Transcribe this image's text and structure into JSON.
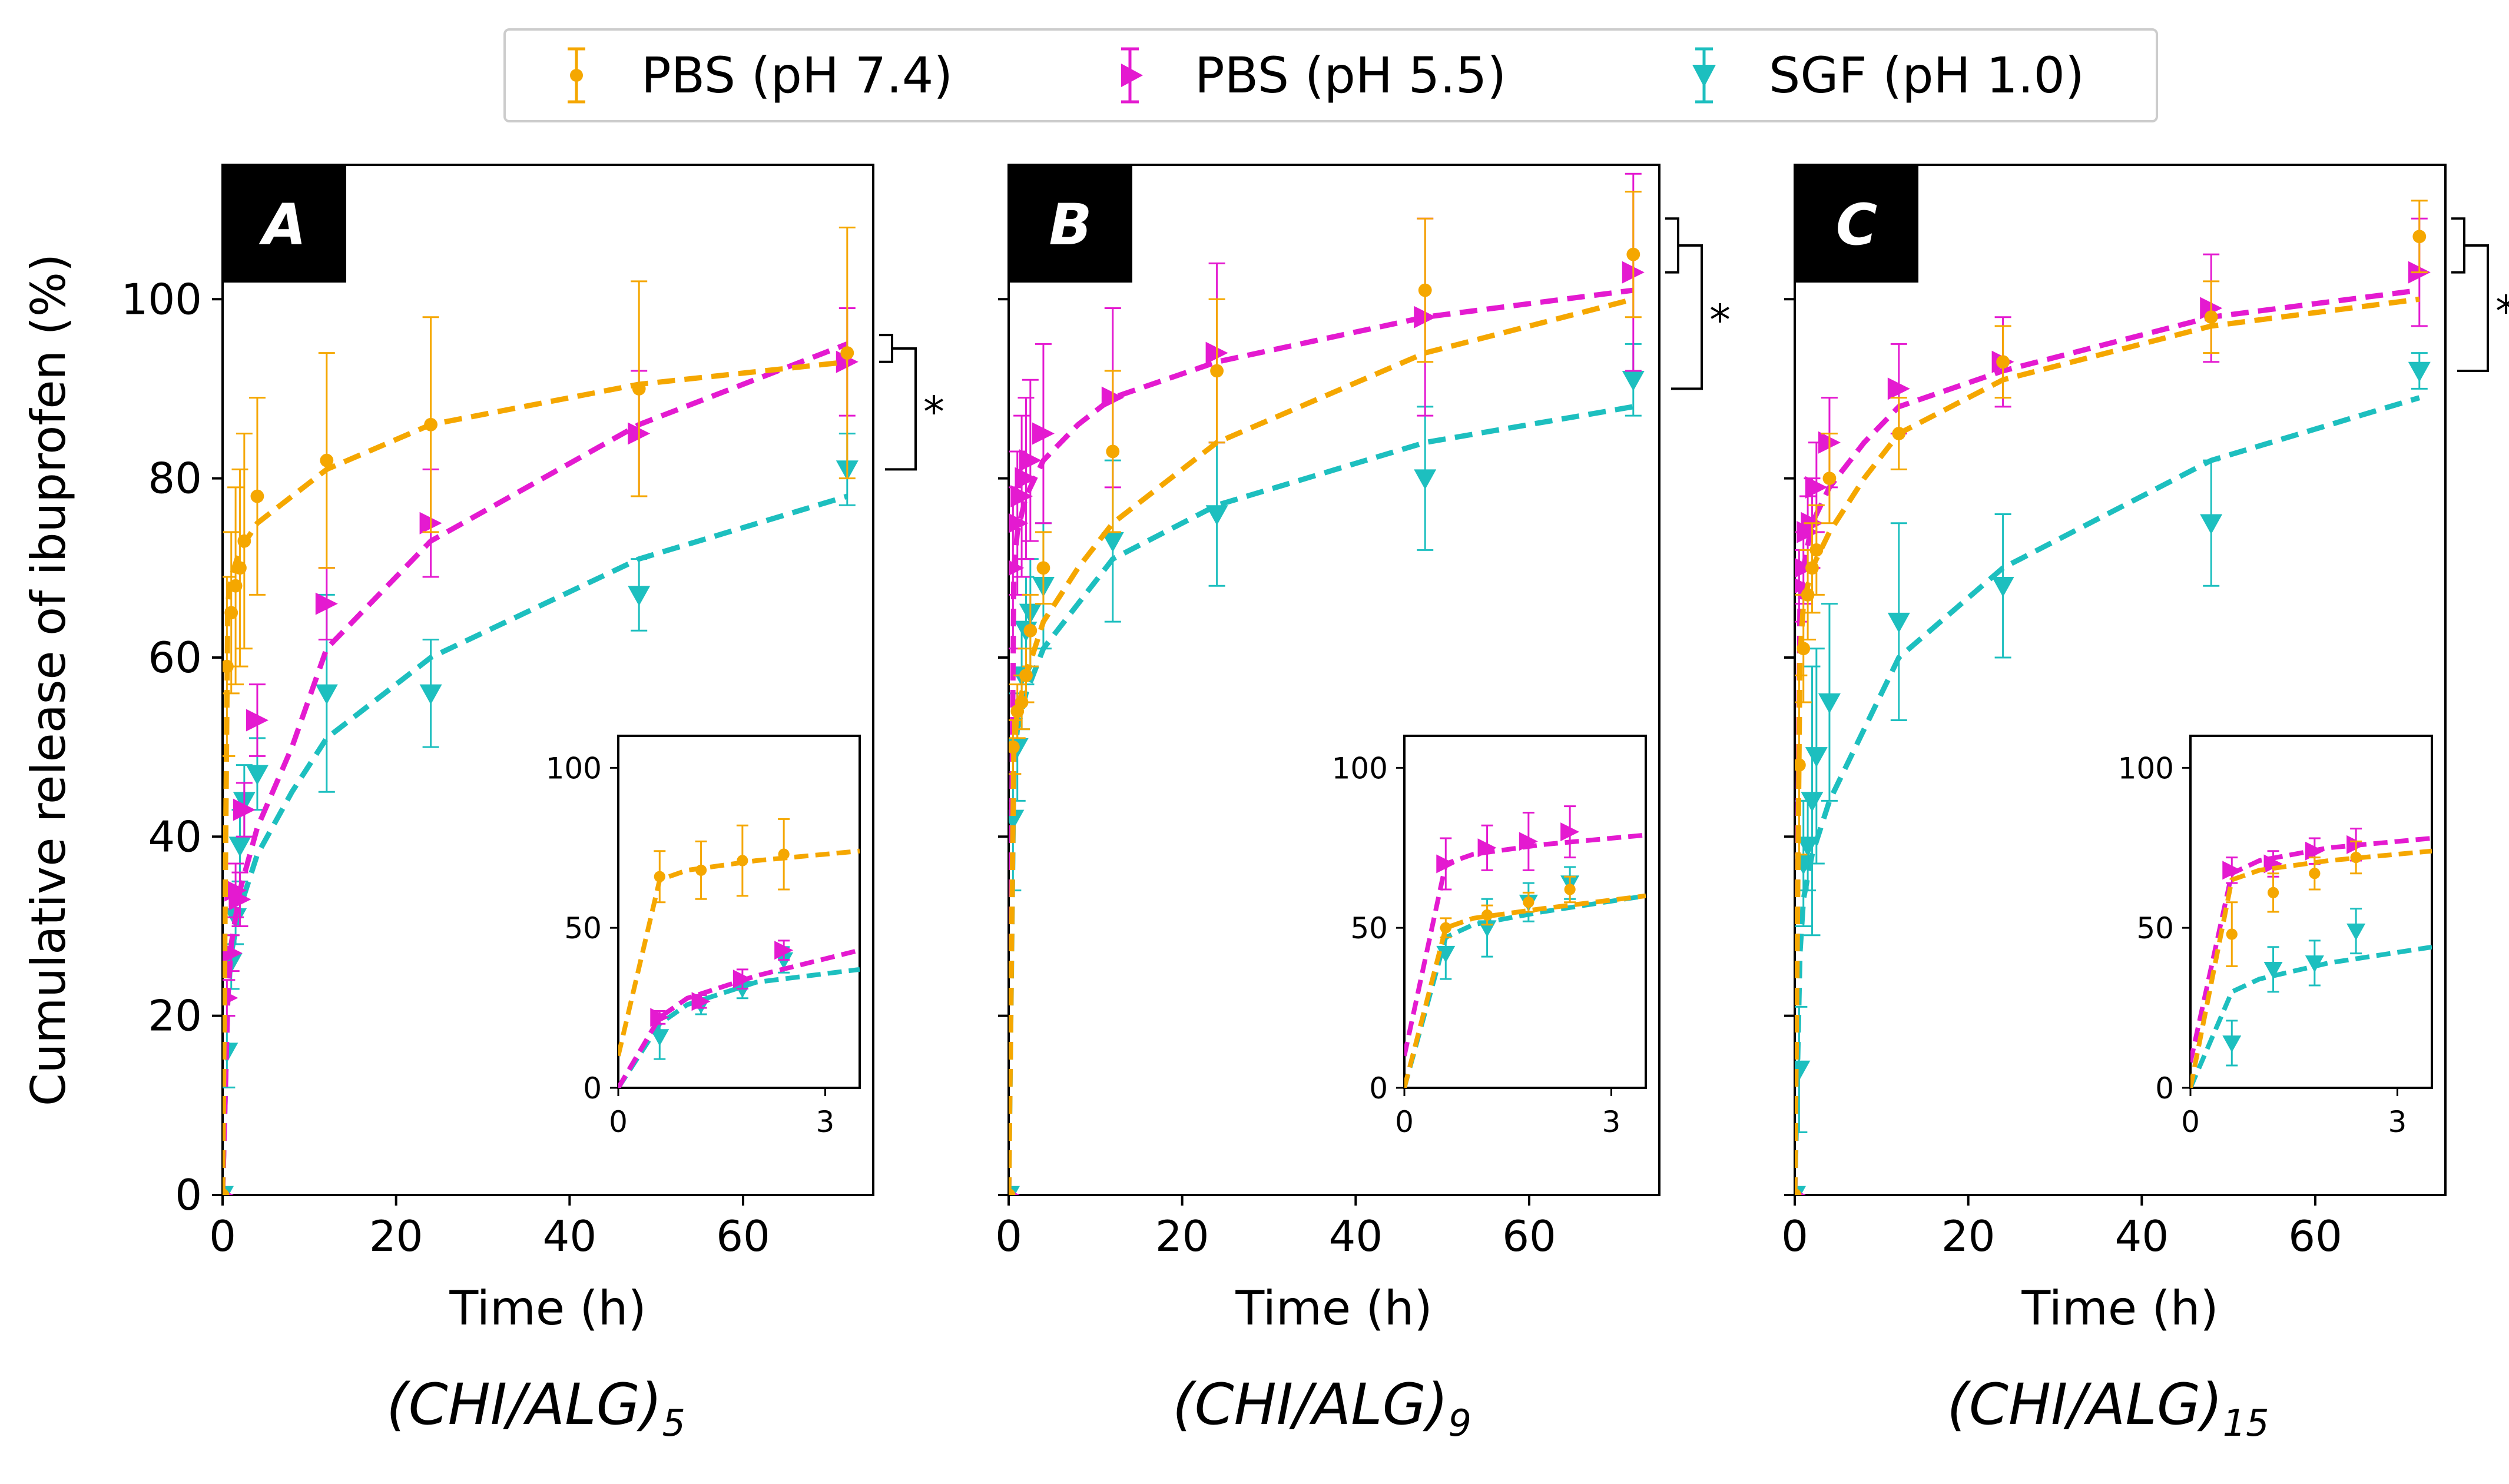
{
  "legend": {
    "items": [
      {
        "label": "PBS (pH 7.4)",
        "color": "#f5a700",
        "marker": "circle"
      },
      {
        "label": "PBS (pH 5.5)",
        "color": "#e41ad0",
        "marker": "triangle-right"
      },
      {
        "label": "SGF (pH 1.0)",
        "color": "#1dbfbf",
        "marker": "triangle-down"
      }
    ]
  },
  "axes_common": {
    "xlabel": "Time (h)",
    "ylabel": "Cumulative release of ibuprofen (%)",
    "xlim": [
      0,
      75
    ],
    "ylim": [
      0,
      115
    ],
    "xticks": [
      0,
      20,
      40,
      60
    ],
    "yticks": [
      0,
      20,
      40,
      60,
      80,
      100
    ],
    "inset_xlim": [
      0,
      3.5
    ],
    "inset_ylim": [
      0,
      110
    ],
    "inset_xticks": [
      0,
      3
    ],
    "inset_yticks": [
      0,
      50,
      100
    ]
  },
  "significance_label": "*",
  "chart_data": [
    {
      "type": "line",
      "panel_label": "A",
      "caption_main": "(CHI/ALG)",
      "caption_sub": "5",
      "x": [
        0,
        0.5,
        1,
        1.5,
        2,
        2.5,
        4,
        12,
        24,
        48,
        72
      ],
      "series": [
        {
          "name": "PBS (pH 7.4)",
          "values": [
            0,
            59,
            65,
            68,
            70,
            73,
            78,
            82,
            86,
            90,
            94
          ],
          "errors": [
            0,
            10,
            9,
            11,
            11,
            12,
            11,
            12,
            12,
            12,
            14
          ],
          "fit_x": [
            0,
            0.6,
            1,
            2,
            4,
            8,
            12,
            24,
            48,
            72
          ],
          "fit_y": [
            0,
            66,
            69,
            72,
            75,
            78,
            81,
            86,
            90.5,
            93
          ]
        },
        {
          "name": "PBS (pH 5.5)",
          "values": [
            0,
            22,
            27,
            34,
            33,
            43,
            53,
            66,
            75,
            85,
            93
          ],
          "errors": [
            0,
            2,
            2,
            3,
            3,
            3,
            4,
            4,
            6,
            7,
            6
          ],
          "fit_x": [
            0,
            0.6,
            1,
            2,
            4,
            8,
            12,
            24,
            48,
            72
          ],
          "fit_y": [
            0,
            22,
            28,
            34,
            41,
            50,
            61,
            73,
            86,
            95
          ]
        },
        {
          "name": "SGF (pH 1.0)",
          "values": [
            0,
            16,
            26,
            31,
            39,
            44,
            47,
            56,
            56,
            67,
            81
          ],
          "errors": [
            0,
            4,
            3,
            3,
            4,
            4,
            4,
            11,
            6,
            4,
            4
          ],
          "fit_x": [
            0,
            0.6,
            1,
            2,
            4,
            8,
            12,
            24,
            48,
            72
          ],
          "fit_y": [
            0,
            22,
            27,
            32,
            38,
            45,
            51,
            60,
            71,
            78
          ]
        }
      ],
      "inset": {
        "x": [
          0.6,
          1.2,
          1.8,
          2.4
        ],
        "series": [
          {
            "name": "PBS (pH 7.4)",
            "values": [
              66,
              68,
              71,
              73
            ],
            "errors": [
              8,
              9,
              11,
              11
            ],
            "fit_x": [
              0,
              0.6,
              1,
              2,
              3.5
            ],
            "fit_y": [
              10,
              65,
              68,
              71,
              74
            ]
          },
          {
            "name": "PBS (pH 5.5)",
            "values": [
              22,
              27,
              34,
              43
            ],
            "errors": [
              2,
              2,
              3,
              3
            ],
            "fit_x": [
              0,
              0.6,
              1,
              2,
              3.5
            ],
            "fit_y": [
              0,
              22,
              28,
              35,
              43
            ]
          },
          {
            "name": "SGF (pH 1.0)",
            "values": [
              16,
              26,
              31,
              40
            ],
            "errors": [
              7,
              3,
              3,
              4
            ],
            "fit_x": [
              0,
              0.6,
              1,
              2,
              3.5
            ],
            "fit_y": [
              0,
              20,
              26,
              33,
              37
            ]
          }
        ]
      },
      "significance": {
        "upper": [
          93,
          96
        ],
        "lower": 81,
        "anchor": 93
      }
    },
    {
      "type": "line",
      "panel_label": "B",
      "caption_main": "(CHI/ALG)",
      "caption_sub": "9",
      "x": [
        0,
        0.5,
        1,
        1.5,
        2,
        2.5,
        4,
        12,
        24,
        48,
        72
      ],
      "series": [
        {
          "name": "PBS (pH 7.4)",
          "values": [
            0,
            50,
            54,
            55,
            58,
            63,
            70,
            83,
            92,
            101,
            105
          ],
          "errors": [
            0,
            3,
            3,
            3,
            3,
            4,
            4,
            9,
            8,
            8,
            7
          ],
          "fit_x": [
            0,
            0.6,
            1,
            2,
            4,
            8,
            12,
            24,
            48,
            72
          ],
          "fit_y": [
            0,
            50,
            54,
            58,
            64,
            70,
            75,
            84,
            94,
            100
          ]
        },
        {
          "name": "PBS (pH 5.5)",
          "values": [
            0,
            70,
            75,
            78,
            80,
            82,
            85,
            89,
            94,
            98,
            103
          ],
          "errors": [
            0,
            9,
            8,
            9,
            9,
            9,
            10,
            10,
            10,
            11,
            11
          ],
          "fit_x": [
            0,
            0.6,
            1,
            2,
            4,
            8,
            12,
            24,
            48,
            72
          ],
          "fit_y": [
            0,
            70,
            74,
            78,
            82,
            86,
            89,
            93,
            98,
            101
          ]
        },
        {
          "name": "SGF (pH 1.0)",
          "values": [
            0,
            42,
            50,
            58,
            63,
            65,
            68,
            73,
            76,
            80,
            91
          ],
          "errors": [
            0,
            8,
            6,
            6,
            6,
            6,
            7,
            9,
            8,
            8,
            4
          ],
          "fit_x": [
            0,
            0.6,
            1,
            2,
            4,
            8,
            12,
            24,
            48,
            72
          ],
          "fit_y": [
            0,
            48,
            52,
            56,
            61,
            66,
            71,
            77,
            84,
            88
          ]
        }
      ],
      "inset": {
        "x": [
          0.6,
          1.2,
          1.8,
          2.4
        ],
        "series": [
          {
            "name": "PBS (pH 7.4)",
            "values": [
              50,
              54,
              58,
              62
            ],
            "errors": [
              3,
              3,
              3,
              4
            ],
            "fit_x": [
              0,
              0.6,
              1,
              2,
              3.5
            ],
            "fit_y": [
              0,
              50,
              53,
              56,
              60
            ]
          },
          {
            "name": "PBS (pH 5.5)",
            "values": [
              70,
              75,
              77,
              80
            ],
            "errors": [
              8,
              7,
              9,
              8
            ],
            "fit_x": [
              0,
              0.6,
              1,
              2,
              3.5
            ],
            "fit_y": [
              10,
              70,
              73,
              76,
              79
            ]
          },
          {
            "name": "SGF (pH 1.0)",
            "values": [
              42,
              50,
              58,
              64
            ],
            "errors": [
              8,
              9,
              6,
              5
            ],
            "fit_x": [
              0,
              0.6,
              1,
              2,
              3.5
            ],
            "fit_y": [
              0,
              47,
              51,
              55,
              60
            ]
          }
        ]
      },
      "significance": {
        "upper": [
          103,
          109
        ],
        "lower": 90,
        "anchor": 100
      }
    },
    {
      "type": "line",
      "panel_label": "C",
      "caption_main": "(CHI/ALG)",
      "caption_sub": "15",
      "x": [
        0,
        0.5,
        1,
        1.5,
        2,
        2.5,
        4,
        12,
        24,
        48,
        72
      ],
      "series": [
        {
          "name": "PBS (pH 7.4)",
          "values": [
            0,
            48,
            61,
            67,
            70,
            72,
            80,
            85,
            93,
            98,
            107
          ],
          "errors": [
            0,
            10,
            6,
            5,
            5,
            5,
            5,
            4,
            4,
            4,
            4
          ],
          "fit_x": [
            0,
            0.6,
            1,
            2,
            4,
            8,
            12,
            24,
            48,
            72
          ],
          "fit_y": [
            0,
            60,
            66,
            70,
            74,
            80,
            85,
            91,
            97,
            100
          ]
        },
        {
          "name": "PBS (pH 5.5)",
          "values": [
            0,
            68,
            70,
            74,
            75,
            79,
            84,
            90,
            93,
            99,
            103
          ],
          "errors": [
            0,
            4,
            4,
            4,
            5,
            5,
            5,
            5,
            5,
            6,
            6
          ],
          "fit_x": [
            0,
            0.6,
            1,
            2,
            4,
            8,
            12,
            24,
            48,
            72
          ],
          "fit_y": [
            0,
            66,
            70,
            75,
            79,
            84,
            88,
            92,
            98,
            101
          ]
        },
        {
          "name": "SGF (pH 1.0)",
          "values": [
            0,
            14,
            37,
            39,
            44,
            49,
            55,
            64,
            68,
            75,
            92
          ],
          "errors": [
            0,
            7,
            7,
            5,
            15,
            12,
            11,
            11,
            8,
            7,
            2
          ],
          "fit_x": [
            0,
            0.6,
            1,
            2,
            4,
            8,
            12,
            24,
            48,
            72
          ],
          "fit_y": [
            0,
            27,
            33,
            38,
            44,
            52,
            60,
            70,
            82,
            89
          ]
        }
      ],
      "inset": {
        "x": [
          0.6,
          1.2,
          1.8,
          2.4
        ],
        "series": [
          {
            "name": "PBS (pH 7.4)",
            "values": [
              48,
              61,
              67,
              72
            ],
            "errors": [
              10,
              6,
              5,
              5
            ],
            "fit_x": [
              0,
              0.6,
              1,
              2,
              3.5
            ],
            "fit_y": [
              0,
              65,
              68,
              71,
              74
            ]
          },
          {
            "name": "PBS (pH 5.5)",
            "values": [
              68,
              70,
              74,
              76
            ],
            "errors": [
              4,
              4,
              4,
              5
            ],
            "fit_x": [
              0,
              0.6,
              1,
              2,
              3.5
            ],
            "fit_y": [
              8,
              67,
              71,
              75,
              78
            ]
          },
          {
            "name": "SGF (pH 1.0)",
            "values": [
              14,
              37,
              39,
              49
            ],
            "errors": [
              7,
              7,
              7,
              7
            ],
            "fit_x": [
              0,
              0.6,
              1,
              2,
              3.5
            ],
            "fit_y": [
              0,
              30,
              34,
              39,
              44
            ]
          }
        ]
      },
      "significance": {
        "upper": [
          103,
          109
        ],
        "lower": 92,
        "anchor": 101
      }
    }
  ]
}
